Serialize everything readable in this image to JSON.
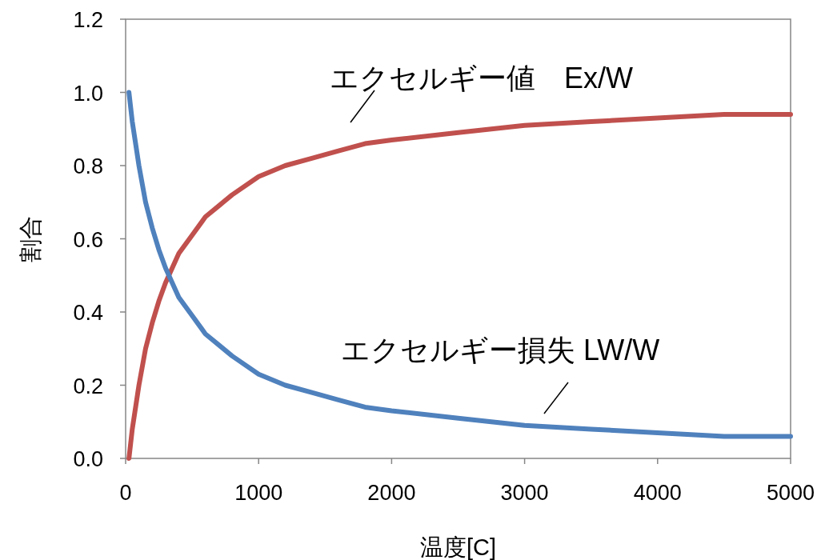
{
  "chart_data": {
    "type": "line",
    "xlabel": "温度[C]",
    "ylabel": "割合",
    "x": [
      25,
      50,
      75,
      100,
      150,
      200,
      250,
      300,
      400,
      500,
      600,
      700,
      800,
      1000,
      1200,
      1400,
      1600,
      1800,
      2000,
      2500,
      3000,
      3500,
      4000,
      4500,
      5000
    ],
    "series": [
      {
        "name": "エクセルギー値　Ex/W",
        "color": "#c0504d",
        "values": [
          0,
          0.08,
          0.14,
          0.2,
          0.3,
          0.37,
          0.43,
          0.48,
          0.56,
          0.61,
          0.66,
          0.69,
          0.72,
          0.77,
          0.8,
          0.82,
          0.84,
          0.86,
          0.87,
          0.89,
          0.91,
          0.92,
          0.93,
          0.94,
          0.94
        ]
      },
      {
        "name": "エクセルギー損失 LW/W",
        "color": "#4f81bd",
        "values": [
          1.0,
          0.92,
          0.86,
          0.8,
          0.7,
          0.63,
          0.57,
          0.52,
          0.44,
          0.39,
          0.34,
          0.31,
          0.28,
          0.23,
          0.2,
          0.18,
          0.16,
          0.14,
          0.13,
          0.11,
          0.09,
          0.08,
          0.07,
          0.06,
          0.06
        ]
      }
    ],
    "xlim": [
      0,
      5000
    ],
    "ylim": [
      0,
      1.2
    ],
    "xticks": [
      0,
      1000,
      2000,
      3000,
      4000,
      5000
    ],
    "yticks": [
      {
        "value": 0,
        "label": "0.0"
      },
      {
        "value": 0.2,
        "label": "0.2"
      },
      {
        "value": 0.4,
        "label": "0.4"
      },
      {
        "value": 0.6,
        "label": "0.6"
      },
      {
        "value": 0.8,
        "label": "0.8"
      },
      {
        "value": 1.0,
        "label": "1.0"
      },
      {
        "value": 1.2,
        "label": "1.2"
      }
    ],
    "line_style": "solid",
    "marker": "none"
  }
}
